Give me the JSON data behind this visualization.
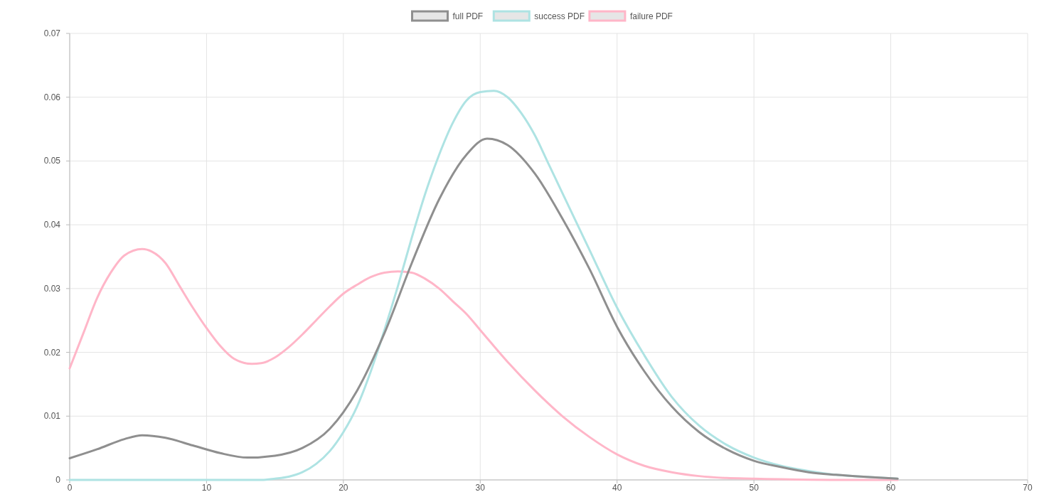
{
  "chart_data": {
    "type": "line",
    "xlim": [
      0,
      70
    ],
    "xticks": [
      0,
      10,
      20,
      30,
      40,
      50,
      60,
      70
    ],
    "ylim": [
      0,
      0.07
    ],
    "yticks": [
      0,
      0.01,
      0.02,
      0.03,
      0.04,
      0.05,
      0.06,
      0.07
    ],
    "grid": true,
    "legend": "top",
    "marker": "none",
    "line_style": "solid",
    "series": [
      {
        "name": "full PDF",
        "color": "#8f8f8f",
        "x": [
          0,
          2,
          4,
          5.3,
          7,
          9,
          11,
          13,
          15,
          17,
          19,
          21,
          23,
          25,
          27,
          29,
          30.5,
          32,
          34,
          36,
          38,
          40,
          42,
          44,
          46,
          48,
          50,
          52,
          54,
          56,
          58,
          60.5
        ],
        "values": [
          0.0034,
          0.0048,
          0.0064,
          0.007,
          0.0066,
          0.0054,
          0.0042,
          0.0035,
          0.0038,
          0.005,
          0.008,
          0.014,
          0.023,
          0.034,
          0.044,
          0.051,
          0.0535,
          0.0525,
          0.048,
          0.041,
          0.033,
          0.024,
          0.017,
          0.0115,
          0.0075,
          0.0048,
          0.003,
          0.002,
          0.0012,
          0.0008,
          0.0005,
          0.0002
        ]
      },
      {
        "name": "success PDF",
        "color": "#aee3e3",
        "x": [
          0,
          5,
          10,
          14,
          15,
          16,
          17,
          18,
          19,
          20,
          21,
          22,
          23,
          24,
          25,
          26,
          27,
          28,
          29,
          30,
          31,
          32,
          33,
          34,
          35,
          36,
          38,
          40,
          42,
          44,
          46,
          48,
          50,
          52,
          54,
          56,
          58,
          60.5
        ],
        "values": [
          0,
          0,
          0,
          0,
          0.0002,
          0.0005,
          0.0012,
          0.0025,
          0.0045,
          0.0075,
          0.0115,
          0.017,
          0.0235,
          0.0305,
          0.038,
          0.045,
          0.051,
          0.056,
          0.0595,
          0.0608,
          0.061,
          0.06,
          0.0575,
          0.054,
          0.0495,
          0.045,
          0.036,
          0.027,
          0.0195,
          0.013,
          0.0085,
          0.0055,
          0.0035,
          0.0022,
          0.0014,
          0.0008,
          0.0005,
          0.0002
        ]
      },
      {
        "name": "failure PDF",
        "color": "#ffb6c8",
        "x": [
          0,
          1,
          2,
          3,
          4,
          5.3,
          6,
          7,
          8,
          9,
          10,
          11,
          12,
          13.3,
          14,
          15,
          16,
          17,
          18,
          19,
          20,
          21,
          22,
          23,
          24,
          25,
          26,
          27,
          28,
          29,
          30,
          32,
          34,
          36,
          38,
          40,
          42,
          44,
          46,
          48,
          50,
          52,
          56,
          60.5
        ],
        "values": [
          0.0175,
          0.023,
          0.0285,
          0.0325,
          0.0352,
          0.0362,
          0.0358,
          0.034,
          0.0305,
          0.027,
          0.0238,
          0.021,
          0.019,
          0.0182,
          0.0183,
          0.0192,
          0.0208,
          0.0228,
          0.025,
          0.0272,
          0.0292,
          0.0306,
          0.0318,
          0.0325,
          0.0327,
          0.0325,
          0.0315,
          0.03,
          0.028,
          0.026,
          0.0235,
          0.0185,
          0.014,
          0.01,
          0.0067,
          0.004,
          0.0022,
          0.0012,
          0.0006,
          0.0003,
          0.0002,
          0.0001,
          0,
          0
        ]
      }
    ]
  }
}
